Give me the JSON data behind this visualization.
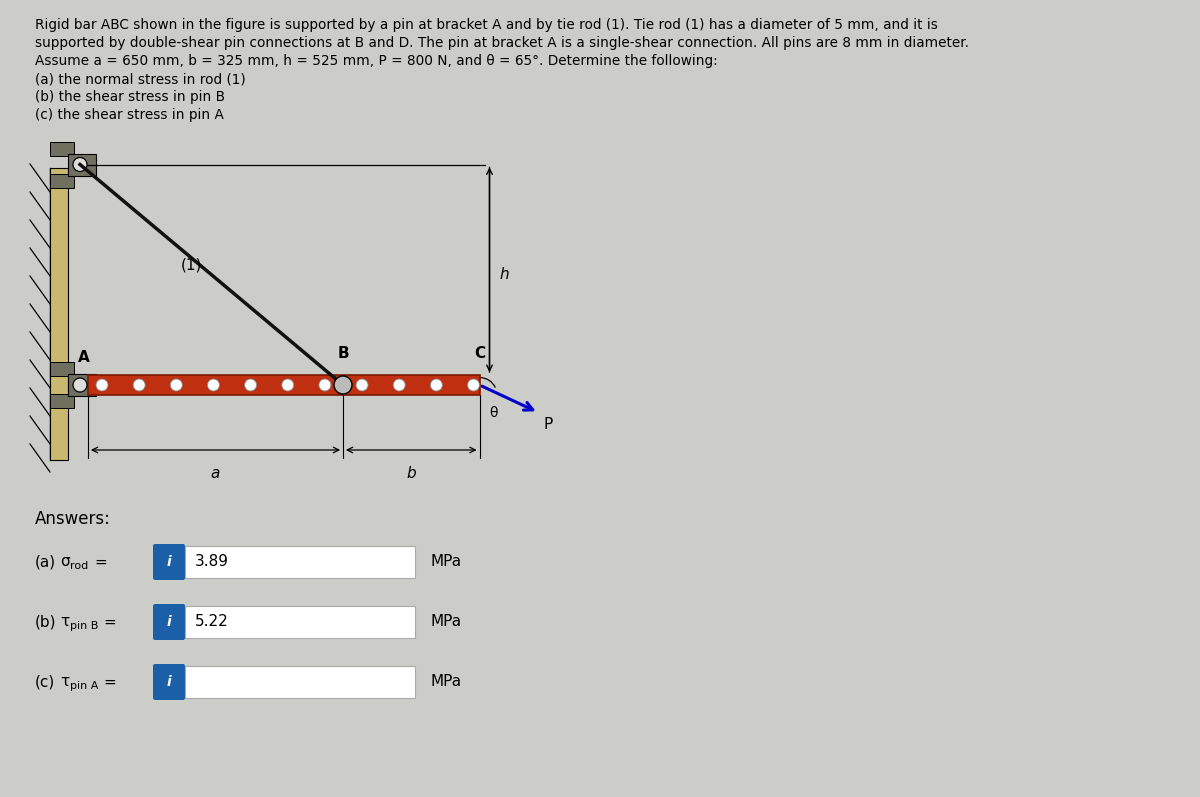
{
  "bg_color": "#ccccc8",
  "wall_color": "#c8b870",
  "wall_dark": "#707060",
  "bracket_color": "#707060",
  "bar_color": "#c03010",
  "bar_edge": "#7a1a00",
  "rod_color": "#111111",
  "box_color": "#1a5fa8",
  "input_border": "#aaaaaa",
  "header_lines": [
    "Rigid bar ABC shown in the figure is supported by a pin at bracket A and by tie rod (1). Tie rod (1) has a diameter of 5 mm, and it is",
    "supported by double-shear pin connections at B and D. The pin at bracket A is a single-shear connection. All pins are 8 mm in diameter.",
    "Assume a = 650 mm, b = 325 mm, h = 525 mm, P = 800 N, and θ = 65°. Determine the following:",
    "(a) the normal stress in rod (1)",
    "(b) the shear stress in pin B",
    "(c) the shear stress in pin A"
  ],
  "value_a": "3.89",
  "value_b": "5.22",
  "value_c": "",
  "unit": "MPa"
}
